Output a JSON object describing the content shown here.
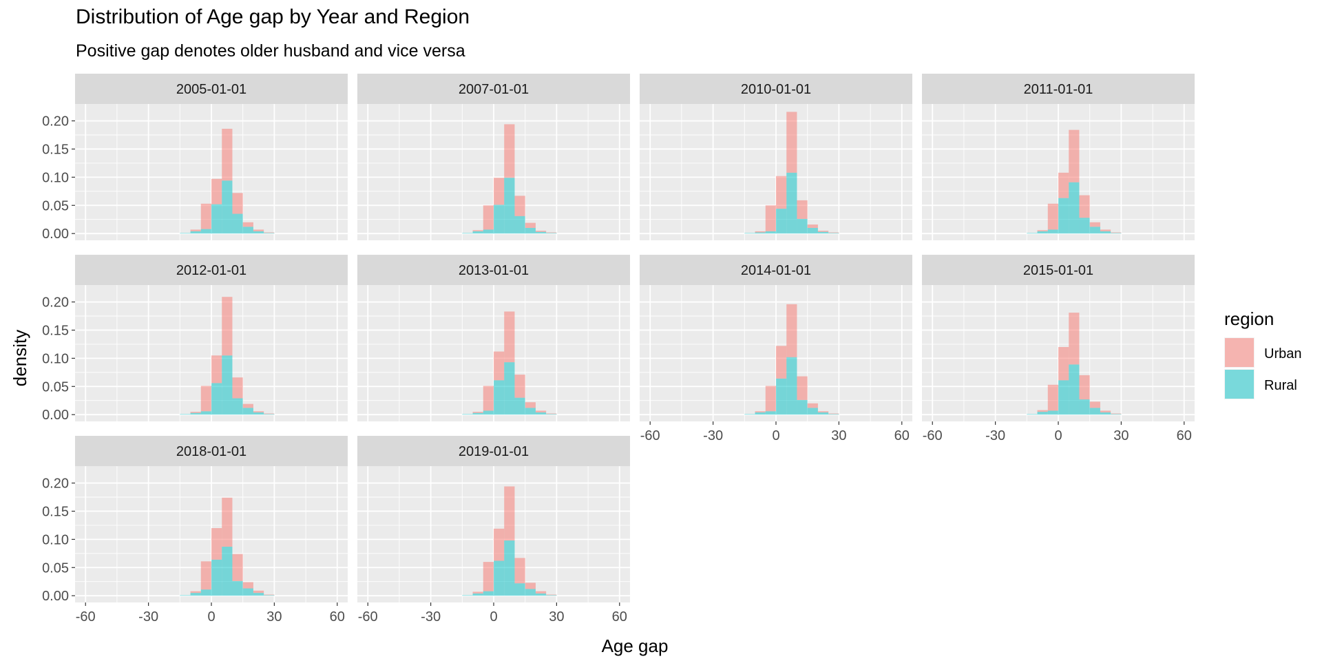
{
  "chart_data": {
    "type": "histogram",
    "title": "Distribution of Age gap by Year and Region",
    "subtitle": "Positive gap denotes older husband and vice versa",
    "xlabel": "Age gap",
    "ylabel": "density",
    "xlim": [
      -65,
      65
    ],
    "ylim": [
      -0.012,
      0.23
    ],
    "x_ticks": [
      -60,
      -30,
      0,
      30,
      60
    ],
    "y_ticks": [
      0.0,
      0.05,
      0.1,
      0.15,
      0.2
    ],
    "y_tick_labels": [
      "0.00",
      "0.05",
      "0.10",
      "0.15",
      "0.20"
    ],
    "x_tick_labels": [
      "-60",
      "-30",
      "0",
      "30",
      "60"
    ],
    "bin_width": 5,
    "bin_starts": [
      -15,
      -10,
      -5,
      0,
      5,
      10,
      15,
      20,
      25,
      30
    ],
    "legend": {
      "title": "region",
      "position": "right",
      "entries": [
        {
          "label": "Urban",
          "color": "#F8766D"
        },
        {
          "label": "Rural",
          "color": "#00BFC4"
        }
      ]
    },
    "grid": true,
    "layout": {
      "ncol": 4,
      "nrow": 3
    },
    "facets": [
      {
        "label": "2005-01-01",
        "series": [
          {
            "name": "Urban",
            "values": [
              0.0,
              0.003,
              0.045,
              0.045,
              0.092,
              0.037,
              0.008,
              0.003,
              0.001,
              0.0
            ]
          },
          {
            "name": "Rural",
            "values": [
              0.001,
              0.004,
              0.008,
              0.052,
              0.094,
              0.035,
              0.012,
              0.004,
              0.001,
              0.0
            ]
          }
        ]
      },
      {
        "label": "2007-01-01",
        "series": [
          {
            "name": "Urban",
            "values": [
              0.0,
              0.002,
              0.043,
              0.048,
              0.095,
              0.036,
              0.009,
              0.002,
              0.001,
              0.0
            ]
          },
          {
            "name": "Rural",
            "values": [
              0.001,
              0.004,
              0.007,
              0.051,
              0.099,
              0.031,
              0.01,
              0.003,
              0.001,
              0.0
            ]
          }
        ]
      },
      {
        "label": "2010-01-01",
        "series": [
          {
            "name": "Urban",
            "values": [
              0.0,
              0.002,
              0.046,
              0.058,
              0.108,
              0.033,
              0.006,
              0.002,
              0.001,
              0.0
            ]
          },
          {
            "name": "Rural",
            "values": [
              0.001,
              0.002,
              0.004,
              0.044,
              0.108,
              0.026,
              0.01,
              0.003,
              0.001,
              0.0
            ]
          }
        ]
      },
      {
        "label": "2011-01-01",
        "series": [
          {
            "name": "Urban",
            "values": [
              0.0,
              0.002,
              0.046,
              0.045,
              0.093,
              0.04,
              0.008,
              0.003,
              0.001,
              0.0
            ]
          },
          {
            "name": "Rural",
            "values": [
              0.001,
              0.004,
              0.007,
              0.063,
              0.091,
              0.028,
              0.012,
              0.004,
              0.001,
              0.0
            ]
          }
        ]
      },
      {
        "label": "2012-01-01",
        "series": [
          {
            "name": "Urban",
            "values": [
              0.0,
              0.002,
              0.045,
              0.049,
              0.104,
              0.037,
              0.007,
              0.002,
              0.001,
              0.0
            ]
          },
          {
            "name": "Rural",
            "values": [
              0.001,
              0.003,
              0.006,
              0.056,
              0.105,
              0.029,
              0.012,
              0.004,
              0.001,
              0.0
            ]
          }
        ]
      },
      {
        "label": "2013-01-01",
        "series": [
          {
            "name": "Urban",
            "values": [
              0.0,
              0.002,
              0.044,
              0.051,
              0.09,
              0.041,
              0.01,
              0.003,
              0.001,
              0.0
            ]
          },
          {
            "name": "Rural",
            "values": [
              0.001,
              0.003,
              0.007,
              0.061,
              0.093,
              0.03,
              0.012,
              0.004,
              0.001,
              0.0
            ]
          }
        ]
      },
      {
        "label": "2014-01-01",
        "series": [
          {
            "name": "Urban",
            "values": [
              0.0,
              0.002,
              0.045,
              0.058,
              0.094,
              0.042,
              0.008,
              0.002,
              0.001,
              0.0
            ]
          },
          {
            "name": "Rural",
            "values": [
              0.001,
              0.004,
              0.006,
              0.064,
              0.102,
              0.026,
              0.012,
              0.004,
              0.001,
              0.0
            ]
          }
        ]
      },
      {
        "label": "2015-01-01",
        "series": [
          {
            "name": "Urban",
            "values": [
              0.0,
              0.003,
              0.046,
              0.059,
              0.092,
              0.043,
              0.011,
              0.003,
              0.001,
              0.0
            ]
          },
          {
            "name": "Rural",
            "values": [
              0.001,
              0.005,
              0.007,
              0.061,
              0.089,
              0.027,
              0.012,
              0.004,
              0.001,
              0.0
            ]
          }
        ]
      },
      {
        "label": "2018-01-01",
        "series": [
          {
            "name": "Urban",
            "values": [
              0.0,
              0.003,
              0.05,
              0.056,
              0.087,
              0.048,
              0.011,
              0.004,
              0.001,
              0.0
            ]
          },
          {
            "name": "Rural",
            "values": [
              0.001,
              0.005,
              0.011,
              0.064,
              0.087,
              0.026,
              0.013,
              0.005,
              0.001,
              0.0
            ]
          }
        ]
      },
      {
        "label": "2019-01-01",
        "series": [
          {
            "name": "Urban",
            "values": [
              0.0,
              0.003,
              0.052,
              0.057,
              0.096,
              0.045,
              0.011,
              0.004,
              0.001,
              0.0
            ]
          },
          {
            "name": "Rural",
            "values": [
              0.001,
              0.004,
              0.008,
              0.062,
              0.098,
              0.022,
              0.012,
              0.004,
              0.001,
              0.0
            ]
          }
        ]
      }
    ]
  }
}
